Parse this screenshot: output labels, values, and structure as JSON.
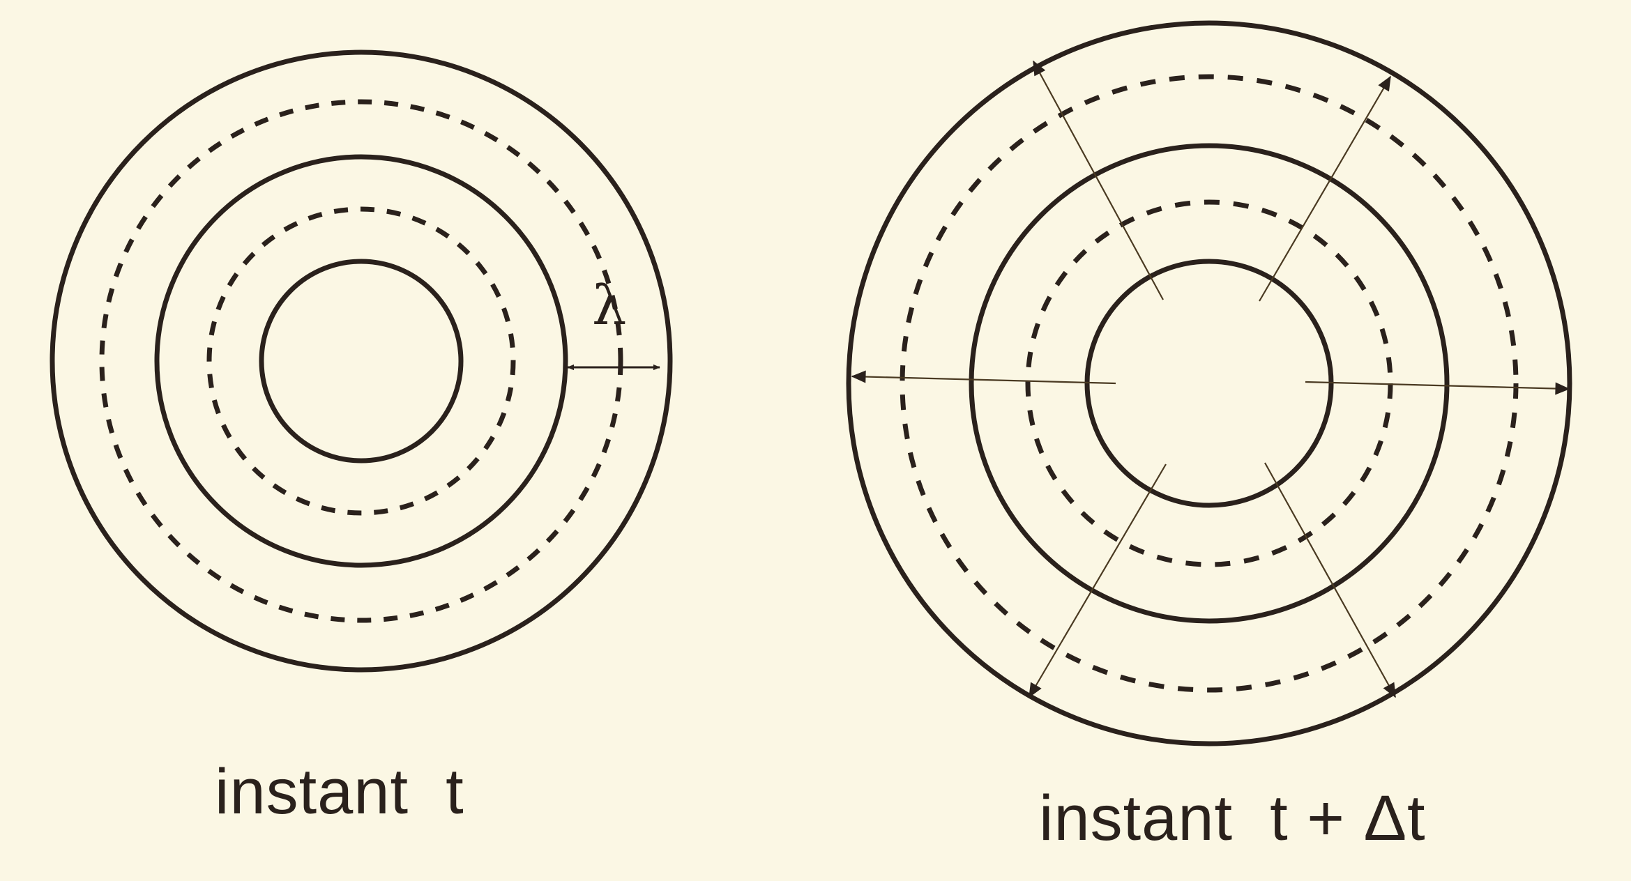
{
  "panels": [
    {
      "caption": "instant  t"
    },
    {
      "caption": "instant  t + Δt"
    }
  ],
  "labels": {
    "wavelength": "λ"
  },
  "colors": {
    "background": "#fbf7e4",
    "ink": "#2a211c",
    "arrow": "#4a3a22"
  }
}
